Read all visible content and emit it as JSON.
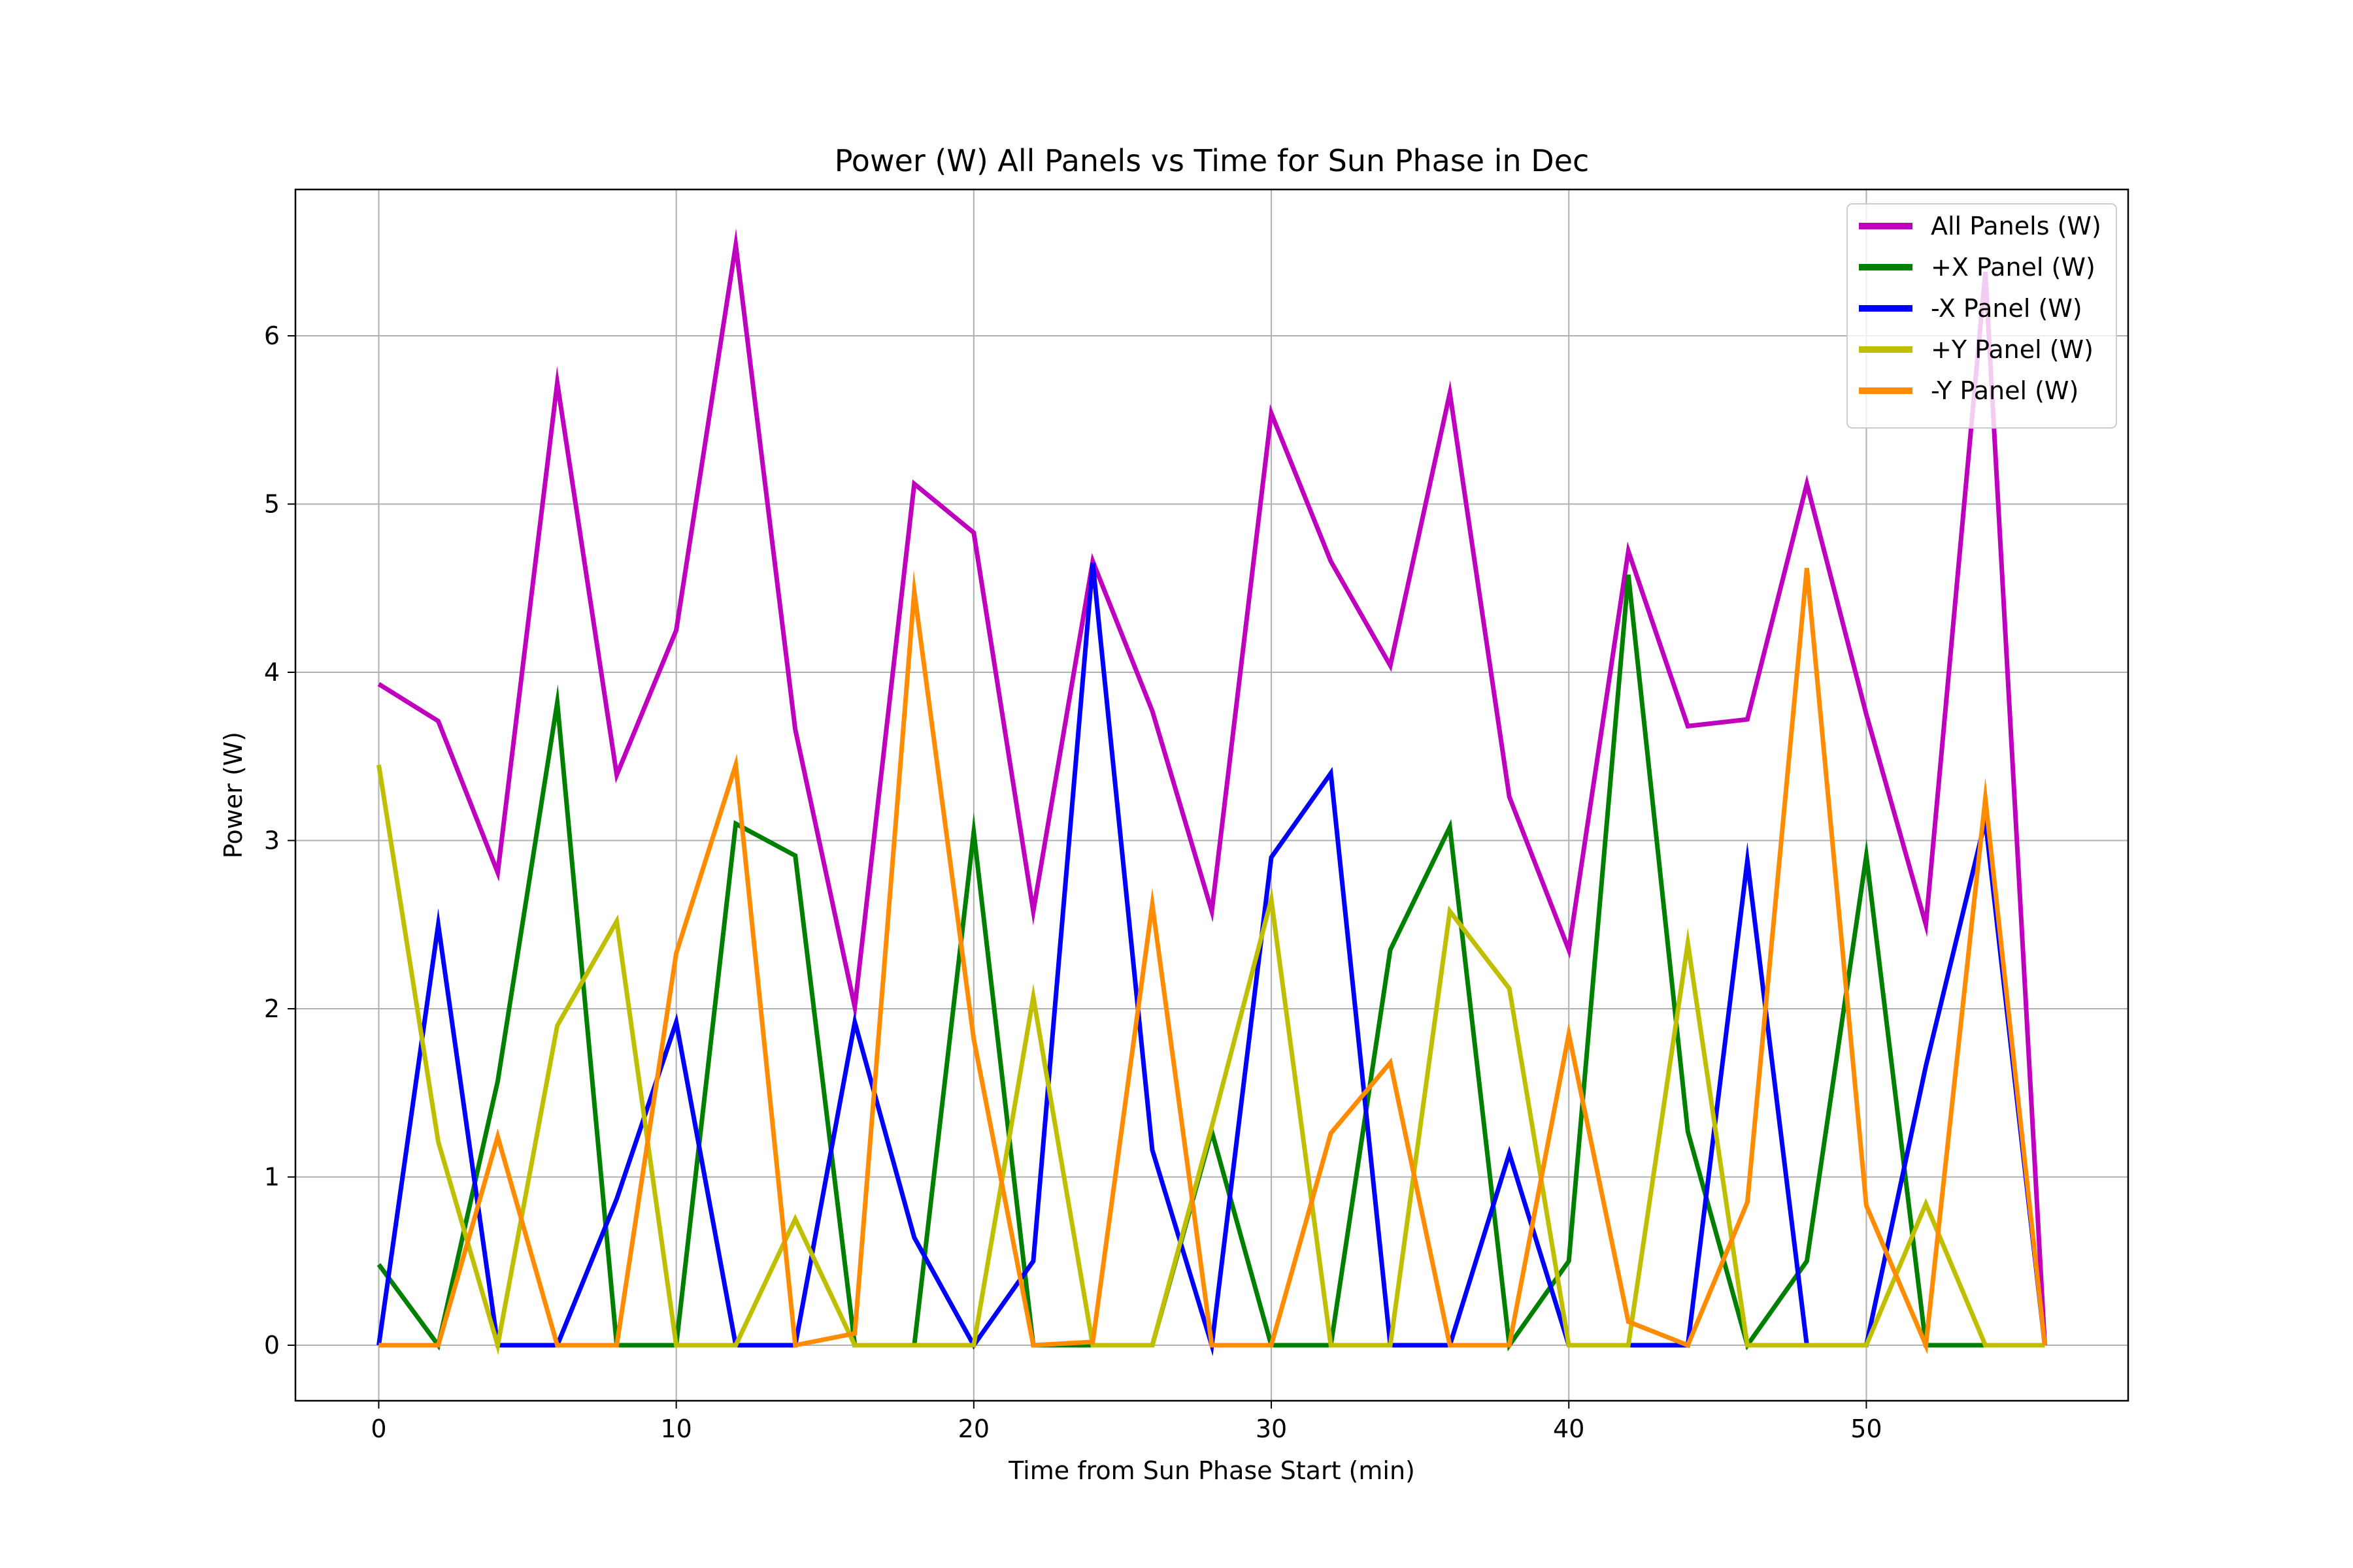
{
  "chart_data": {
    "type": "line",
    "title": "Power (W) All Panels vs Time for Sun Phase in Dec",
    "xlabel": "Time from Sun Phase Start (min)",
    "ylabel": "Power (W)",
    "xlim": [
      -2.8,
      58.8
    ],
    "ylim": [
      -0.33,
      6.87
    ],
    "xticks": [
      0,
      10,
      20,
      30,
      40,
      50
    ],
    "yticks": [
      0,
      1,
      2,
      3,
      4,
      5,
      6
    ],
    "grid": true,
    "legend_position": "top-right",
    "x": [
      0,
      2,
      4,
      6,
      8,
      10,
      12,
      14,
      16,
      18,
      20,
      22,
      24,
      26,
      28,
      30,
      32,
      34,
      36,
      38,
      40,
      42,
      44,
      46,
      48,
      50,
      52,
      54,
      56
    ],
    "series": [
      {
        "name": "All Panels (W)",
        "color": "#bf00bf",
        "values": [
          3.93,
          3.71,
          2.81,
          5.72,
          3.39,
          4.25,
          6.54,
          3.66,
          2.01,
          5.12,
          4.83,
          2.58,
          4.66,
          3.77,
          2.58,
          5.54,
          4.66,
          4.04,
          5.66,
          3.26,
          2.35,
          4.72,
          3.68,
          3.72,
          5.12,
          3.75,
          2.5,
          6.38,
          0.0
        ]
      },
      {
        "name": "+X Panel (W)",
        "color": "#008000",
        "values": [
          0.48,
          0.0,
          1.57,
          3.82,
          0.0,
          0.0,
          3.1,
          2.91,
          0.0,
          0.0,
          3.05,
          0.0,
          0.0,
          0.0,
          1.27,
          0.0,
          0.0,
          2.35,
          3.08,
          0.0,
          0.5,
          4.58,
          1.27,
          0.0,
          0.5,
          2.91,
          0.0,
          0.0,
          0.0
        ]
      },
      {
        "name": "-X Panel (W)",
        "color": "#0000ff",
        "values": [
          0.0,
          2.5,
          0.0,
          0.0,
          0.87,
          1.92,
          0.0,
          0.0,
          1.92,
          0.64,
          0.0,
          0.5,
          4.65,
          1.16,
          0.0,
          2.9,
          3.4,
          0.0,
          0.0,
          1.14,
          0.0,
          0.0,
          0.0,
          2.88,
          0.0,
          0.0,
          1.66,
          3.12,
          0.0
        ]
      },
      {
        "name": "+Y Panel (W)",
        "color": "#bfbf00",
        "values": [
          3.45,
          1.21,
          0.0,
          1.9,
          2.52,
          0.0,
          0.0,
          0.75,
          0.0,
          0.0,
          0.0,
          2.07,
          0.0,
          0.0,
          1.3,
          2.65,
          0.0,
          0.0,
          2.58,
          2.12,
          0.0,
          0.0,
          2.39,
          0.0,
          0.0,
          0.0,
          0.84,
          0.0,
          0.0
        ]
      },
      {
        "name": "-Y Panel (W)",
        "color": "#ff8c00",
        "values": [
          0.0,
          0.0,
          1.24,
          0.0,
          0.0,
          2.33,
          3.45,
          0.0,
          0.07,
          4.48,
          1.82,
          0.0,
          0.02,
          2.62,
          0.0,
          0.0,
          1.26,
          1.68,
          0.0,
          0.0,
          1.85,
          0.14,
          0.0,
          0.85,
          4.62,
          0.83,
          0.0,
          3.25,
          0.0
        ]
      }
    ]
  }
}
